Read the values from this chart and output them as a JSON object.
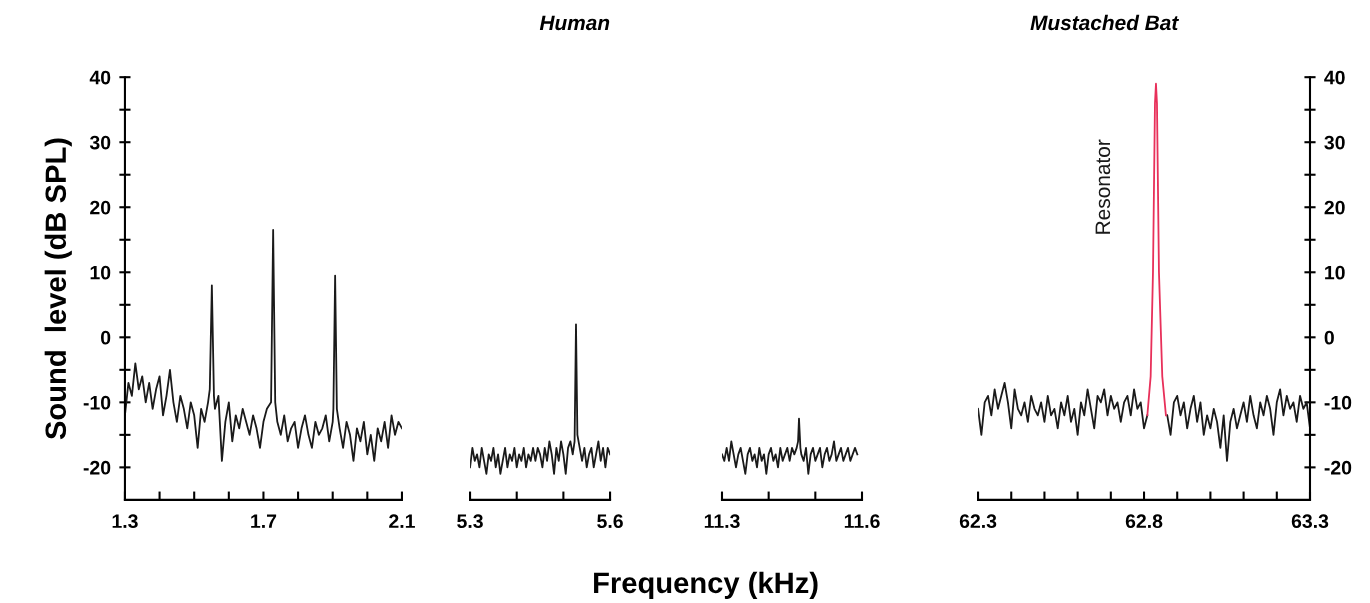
{
  "chart_data": [
    {
      "type": "line",
      "ylabel": "Sound  level (dB SPL)",
      "xlim": [
        1.3,
        2.1
      ],
      "xticks": [
        1.3,
        {
          "value": 1.4,
          "label": null
        },
        {
          "value": 1.5,
          "label": null
        },
        {
          "value": 1.6,
          "label": null
        },
        1.7,
        {
          "value": 1.8,
          "label": null
        },
        {
          "value": 1.9,
          "label": null
        },
        {
          "value": 2.0,
          "label": null
        },
        2.1
      ],
      "ylim": [
        -25,
        40
      ],
      "yticks": [
        40,
        {
          "value": 35,
          "label": null
        },
        30,
        {
          "value": 25,
          "label": null
        },
        20,
        {
          "value": 15,
          "label": null
        },
        10,
        {
          "value": 5,
          "label": null
        },
        0,
        {
          "value": -5,
          "label": null
        },
        -10,
        {
          "value": -15,
          "label": null
        },
        -20
      ],
      "series": [
        {
          "color": "#1a1a1a",
          "x": [
            1.3,
            1.31,
            1.32,
            1.33,
            1.34,
            1.35,
            1.36,
            1.37,
            1.38,
            1.39,
            1.4,
            1.41,
            1.42,
            1.43,
            1.44,
            1.45,
            1.46,
            1.47,
            1.48,
            1.49,
            1.5,
            1.51,
            1.52,
            1.53,
            1.54,
            1.545,
            1.551,
            1.557,
            1.56,
            1.57,
            1.58,
            1.59,
            1.6,
            1.61,
            1.62,
            1.63,
            1.64,
            1.65,
            1.66,
            1.67,
            1.68,
            1.69,
            1.7,
            1.71,
            1.722,
            1.728,
            1.734,
            1.74,
            1.75,
            1.76,
            1.77,
            1.78,
            1.79,
            1.8,
            1.81,
            1.82,
            1.83,
            1.84,
            1.85,
            1.86,
            1.87,
            1.88,
            1.89,
            1.9,
            1.902,
            1.907,
            1.912,
            1.92,
            1.93,
            1.94,
            1.95,
            1.96,
            1.97,
            1.98,
            1.99,
            2.0,
            2.01,
            2.02,
            2.03,
            2.04,
            2.05,
            2.06,
            2.07,
            2.08,
            2.09,
            2.1
          ],
          "values": [
            -12,
            -7,
            -9,
            -4,
            -8,
            -6,
            -10,
            -7,
            -11,
            -8,
            -6,
            -12,
            -9,
            -5,
            -10,
            -13,
            -9,
            -11,
            -14,
            -10,
            -12,
            -17,
            -11,
            -13,
            -10,
            -8,
            8,
            -9,
            -11,
            -9,
            -19,
            -13,
            -10,
            -16,
            -12,
            -14,
            -11,
            -13,
            -15,
            -12,
            -14,
            -17,
            -13,
            -11,
            -10,
            16.5,
            -10,
            -13,
            -15,
            -12,
            -16,
            -14,
            -13,
            -17,
            -14,
            -12,
            -15,
            -17,
            -13,
            -15,
            -14,
            -12,
            -16,
            -13,
            -11,
            9.5,
            -11,
            -14,
            -17,
            -13,
            -15,
            -19,
            -14,
            -16,
            -13,
            -18,
            -15,
            -19,
            -14,
            -16,
            -13,
            -17,
            -12,
            -15,
            -13,
            -14
          ]
        }
      ]
    },
    {
      "type": "line",
      "title": "Human",
      "xlabel": "Frequency (kHz)",
      "xlim": [
        5.3,
        5.6
      ],
      "xticks": [
        5.3,
        {
          "value": 5.4,
          "label": null
        },
        {
          "value": 5.5,
          "label": null
        },
        5.6
      ],
      "ylim": [
        -25,
        40
      ],
      "tick_labels": "x",
      "series": [
        {
          "color": "#1a1a1a",
          "x": [
            5.3,
            5.305,
            5.31,
            5.315,
            5.32,
            5.325,
            5.33,
            5.335,
            5.34,
            5.345,
            5.35,
            5.355,
            5.36,
            5.365,
            5.37,
            5.375,
            5.38,
            5.385,
            5.39,
            5.395,
            5.4,
            5.405,
            5.41,
            5.415,
            5.42,
            5.425,
            5.43,
            5.435,
            5.44,
            5.445,
            5.45,
            5.455,
            5.46,
            5.465,
            5.47,
            5.475,
            5.48,
            5.485,
            5.49,
            5.495,
            5.5,
            5.505,
            5.51,
            5.515,
            5.52,
            5.524,
            5.527,
            5.53,
            5.535,
            5.54,
            5.545,
            5.55,
            5.555,
            5.56,
            5.565,
            5.57,
            5.575,
            5.58,
            5.585,
            5.59,
            5.595,
            5.6
          ],
          "values": [
            -20,
            -17,
            -19,
            -18,
            -20,
            -17,
            -19,
            -21,
            -18,
            -19,
            -17,
            -20,
            -18,
            -21,
            -19,
            -17,
            -20,
            -18,
            -19,
            -17,
            -20,
            -18,
            -19,
            -17,
            -20,
            -18,
            -19,
            -17,
            -19,
            -17,
            -18,
            -20,
            -17,
            -19,
            -16,
            -18,
            -21,
            -17,
            -19,
            -16,
            -18,
            -21,
            -17,
            -16,
            -18,
            -16,
            2,
            -15,
            -17,
            -19,
            -17,
            -20,
            -18,
            -17,
            -20,
            -18,
            -16,
            -19,
            -17,
            -20,
            -17,
            -18
          ]
        }
      ]
    },
    {
      "type": "line",
      "xlim": [
        11.3,
        11.6
      ],
      "xticks": [
        11.3,
        {
          "value": 11.4,
          "label": null
        },
        {
          "value": 11.5,
          "label": null
        },
        11.6
      ],
      "ylim": [
        -25,
        40
      ],
      "tick_labels": "x",
      "series": [
        {
          "color": "#1a1a1a",
          "x": [
            11.3,
            11.305,
            11.31,
            11.315,
            11.32,
            11.325,
            11.33,
            11.335,
            11.34,
            11.345,
            11.35,
            11.355,
            11.36,
            11.365,
            11.37,
            11.375,
            11.38,
            11.385,
            11.39,
            11.395,
            11.4,
            11.405,
            11.41,
            11.415,
            11.42,
            11.425,
            11.43,
            11.435,
            11.44,
            11.445,
            11.45,
            11.455,
            11.46,
            11.463,
            11.465,
            11.468,
            11.47,
            11.475,
            11.48,
            11.485,
            11.49,
            11.495,
            11.5,
            11.505,
            11.51,
            11.515,
            11.52,
            11.525,
            11.53,
            11.535,
            11.54,
            11.545,
            11.55,
            11.555,
            11.56,
            11.565,
            11.57,
            11.575,
            11.58,
            11.585,
            11.59
          ],
          "values": [
            -18,
            -19,
            -17,
            -19,
            -16,
            -18,
            -20,
            -18,
            -17,
            -19,
            -21,
            -18,
            -17,
            -19,
            -18,
            -20,
            -17,
            -19,
            -18,
            -21,
            -18,
            -17,
            -19,
            -18,
            -20,
            -17,
            -19,
            -18,
            -17,
            -19,
            -17,
            -18,
            -17,
            -16,
            -12.5,
            -17,
            -18,
            -19,
            -17,
            -21,
            -18,
            -17,
            -19,
            -18,
            -17,
            -20,
            -18,
            -17,
            -19,
            -18,
            -16,
            -19,
            -18,
            -17,
            -19,
            -18,
            -17,
            -19,
            -18,
            -17,
            -18
          ]
        }
      ]
    },
    {
      "type": "line",
      "title": "Mustached Bat",
      "xlim": [
        62.3,
        63.3
      ],
      "xticks": [
        62.3,
        {
          "value": 62.4,
          "label": null
        },
        {
          "value": 62.5,
          "label": null
        },
        {
          "value": 62.6,
          "label": null
        },
        {
          "value": 62.7,
          "label": null
        },
        62.8,
        {
          "value": 62.9,
          "label": null
        },
        {
          "value": 63.0,
          "label": null
        },
        {
          "value": 63.1,
          "label": null
        },
        {
          "value": 63.2,
          "label": null
        },
        63.3
      ],
      "y2lim": [
        -25,
        40
      ],
      "y2ticks": [
        40,
        {
          "value": 35,
          "label": null
        },
        30,
        {
          "value": 25,
          "label": null
        },
        20,
        {
          "value": 15,
          "label": null
        },
        10,
        {
          "value": 5,
          "label": null
        },
        0,
        {
          "value": -5,
          "label": null
        },
        -10,
        {
          "value": -15,
          "label": null
        },
        -20
      ],
      "series": [
        {
          "color": "#1a1a1a",
          "axis": "y2",
          "x": [
            62.3,
            62.31,
            62.32,
            62.33,
            62.34,
            62.35,
            62.36,
            62.37,
            62.38,
            62.39,
            62.4,
            62.41,
            62.42,
            62.43,
            62.44,
            62.45,
            62.46,
            62.47,
            62.48,
            62.49,
            62.5,
            62.51,
            62.52,
            62.53,
            62.54,
            62.55,
            62.56,
            62.57,
            62.58,
            62.59,
            62.6,
            62.61,
            62.62,
            62.63,
            62.64,
            62.65,
            62.66,
            62.67,
            62.68,
            62.69,
            62.7,
            62.71,
            62.72,
            62.73,
            62.74,
            62.75,
            62.76,
            62.77,
            62.78,
            62.79,
            62.8,
            62.81,
            62.84,
            62.87,
            62.88,
            62.89,
            62.9,
            62.91,
            62.92,
            62.93,
            62.94,
            62.95,
            62.96,
            62.97,
            62.98,
            62.99,
            63.0,
            63.01,
            63.02,
            63.03,
            63.04,
            63.05,
            63.06,
            63.07,
            63.08,
            63.09,
            63.1,
            63.11,
            63.12,
            63.13,
            63.14,
            63.15,
            63.16,
            63.17,
            63.18,
            63.19,
            63.2,
            63.21,
            63.22,
            63.23,
            63.24,
            63.25,
            63.26,
            63.27,
            63.28,
            63.29,
            63.3
          ],
          "values": [
            -11,
            -15,
            -10,
            -9,
            -12,
            -8,
            -11,
            -9,
            -7,
            -10,
            -14,
            -8,
            -11,
            -12,
            -10,
            -13,
            -9,
            -11,
            -12,
            -10,
            -13,
            -9,
            -12,
            -11,
            -14,
            -10,
            -12,
            -9,
            -13,
            -11,
            -15,
            -10,
            -12,
            -8,
            -11,
            -14,
            -9,
            -10,
            -8,
            -12,
            -9,
            -11,
            -10,
            -13,
            -10,
            -9,
            -12,
            -8,
            -11,
            -10,
            -14,
            -12,
            null,
            -12,
            -15,
            -10,
            -9,
            -12,
            -10,
            -14,
            -11,
            -9,
            -13,
            -10,
            -15,
            -12,
            -14,
            -11,
            -13,
            -17,
            -12,
            -19,
            -13,
            -11,
            -14,
            -12,
            -10,
            -13,
            -9,
            -12,
            -14,
            -10,
            -12,
            -9,
            -11,
            -15,
            -10,
            -8,
            -12,
            -9,
            -11,
            -10,
            -13,
            -9,
            -11,
            -10,
            -14
          ]
        },
        {
          "name": "Resonator",
          "color": "#e8305a",
          "axis": "y2",
          "x": [
            62.81,
            62.82,
            62.827,
            62.833,
            62.836,
            62.839,
            62.845,
            62.855,
            62.866
          ],
          "values": [
            -12,
            -6,
            10,
            36,
            39,
            36,
            10,
            -6,
            -12
          ]
        }
      ]
    }
  ]
}
